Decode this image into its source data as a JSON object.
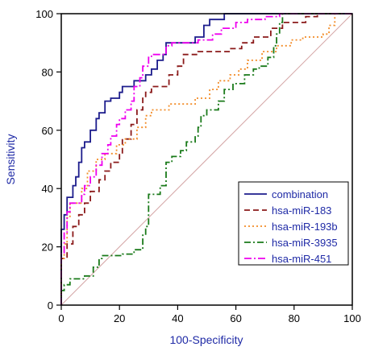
{
  "chart_data": {
    "type": "line",
    "title": "",
    "xlabel": "100-Specificity",
    "ylabel": "Sensitivity",
    "xlim": [
      0,
      100
    ],
    "ylim": [
      0,
      100
    ],
    "xticks": [
      0,
      20,
      40,
      60,
      80,
      100
    ],
    "yticks": [
      0,
      20,
      40,
      60,
      80,
      100
    ],
    "grid": false,
    "legend_position": "bottom-right",
    "reference_line": {
      "x": [
        0,
        100
      ],
      "y": [
        0,
        100
      ],
      "color": "#d4a5a5"
    },
    "series": [
      {
        "name": "combination",
        "color": "#1c1c8c",
        "dash": "",
        "points": [
          [
            0,
            0
          ],
          [
            0,
            26
          ],
          [
            1,
            26
          ],
          [
            1,
            31
          ],
          [
            2,
            31
          ],
          [
            2,
            37
          ],
          [
            4,
            37
          ],
          [
            4,
            41
          ],
          [
            5,
            41
          ],
          [
            5,
            44
          ],
          [
            6,
            44
          ],
          [
            6,
            49
          ],
          [
            7,
            49
          ],
          [
            7,
            54
          ],
          [
            8,
            54
          ],
          [
            8,
            56
          ],
          [
            10,
            56
          ],
          [
            10,
            60
          ],
          [
            12,
            60
          ],
          [
            12,
            64
          ],
          [
            13,
            64
          ],
          [
            13,
            66
          ],
          [
            15,
            66
          ],
          [
            15,
            70
          ],
          [
            17,
            70
          ],
          [
            17,
            71
          ],
          [
            20,
            71
          ],
          [
            20,
            73
          ],
          [
            21,
            73
          ],
          [
            21,
            75
          ],
          [
            25,
            75
          ],
          [
            25,
            77
          ],
          [
            29,
            77
          ],
          [
            29,
            79
          ],
          [
            31,
            79
          ],
          [
            31,
            81
          ],
          [
            33,
            81
          ],
          [
            33,
            84
          ],
          [
            35,
            84
          ],
          [
            35,
            86
          ],
          [
            36,
            86
          ],
          [
            36,
            90
          ],
          [
            46,
            90
          ],
          [
            46,
            92
          ],
          [
            49,
            92
          ],
          [
            49,
            96
          ],
          [
            51,
            96
          ],
          [
            51,
            98
          ],
          [
            56,
            98
          ],
          [
            56,
            100
          ],
          [
            100,
            100
          ]
        ]
      },
      {
        "name": "hsa-miR-183",
        "color": "#8b1a1a",
        "dash": "7,4",
        "points": [
          [
            0,
            0
          ],
          [
            0,
            16
          ],
          [
            2,
            16
          ],
          [
            2,
            21
          ],
          [
            4,
            21
          ],
          [
            4,
            27
          ],
          [
            6,
            27
          ],
          [
            6,
            31
          ],
          [
            8,
            31
          ],
          [
            8,
            35
          ],
          [
            10,
            35
          ],
          [
            10,
            39
          ],
          [
            13,
            39
          ],
          [
            13,
            43
          ],
          [
            15,
            43
          ],
          [
            15,
            46
          ],
          [
            17,
            46
          ],
          [
            17,
            49
          ],
          [
            20,
            49
          ],
          [
            20,
            52
          ],
          [
            21,
            52
          ],
          [
            21,
            57
          ],
          [
            24,
            57
          ],
          [
            24,
            62
          ],
          [
            26,
            62
          ],
          [
            26,
            67
          ],
          [
            28,
            67
          ],
          [
            28,
            71
          ],
          [
            29,
            71
          ],
          [
            29,
            73
          ],
          [
            31,
            73
          ],
          [
            31,
            75
          ],
          [
            37,
            75
          ],
          [
            37,
            79
          ],
          [
            40,
            79
          ],
          [
            40,
            82
          ],
          [
            42,
            82
          ],
          [
            42,
            86
          ],
          [
            47,
            86
          ],
          [
            47,
            87
          ],
          [
            58,
            87
          ],
          [
            58,
            88
          ],
          [
            62,
            88
          ],
          [
            62,
            90
          ],
          [
            66,
            90
          ],
          [
            66,
            92
          ],
          [
            72,
            92
          ],
          [
            72,
            95
          ],
          [
            76,
            95
          ],
          [
            76,
            97
          ],
          [
            84,
            97
          ],
          [
            84,
            99
          ],
          [
            88,
            99
          ],
          [
            88,
            100
          ],
          [
            100,
            100
          ]
        ]
      },
      {
        "name": "hsa-miR-193b",
        "color": "#f28c28",
        "dash": "2,3",
        "points": [
          [
            0,
            0
          ],
          [
            0,
            16
          ],
          [
            1,
            16
          ],
          [
            1,
            21
          ],
          [
            2,
            21
          ],
          [
            2,
            30
          ],
          [
            3,
            30
          ],
          [
            3,
            35
          ],
          [
            7,
            35
          ],
          [
            7,
            40
          ],
          [
            9,
            40
          ],
          [
            9,
            46
          ],
          [
            12,
            46
          ],
          [
            12,
            50
          ],
          [
            15,
            50
          ],
          [
            15,
            52
          ],
          [
            19,
            52
          ],
          [
            19,
            55
          ],
          [
            22,
            55
          ],
          [
            22,
            57
          ],
          [
            26,
            57
          ],
          [
            26,
            61
          ],
          [
            29,
            61
          ],
          [
            29,
            65
          ],
          [
            31,
            65
          ],
          [
            31,
            67
          ],
          [
            37,
            67
          ],
          [
            37,
            69
          ],
          [
            46,
            69
          ],
          [
            46,
            71
          ],
          [
            51,
            71
          ],
          [
            51,
            74
          ],
          [
            54,
            74
          ],
          [
            54,
            77
          ],
          [
            58,
            77
          ],
          [
            58,
            79
          ],
          [
            61,
            79
          ],
          [
            61,
            81
          ],
          [
            64,
            81
          ],
          [
            64,
            84
          ],
          [
            69,
            84
          ],
          [
            69,
            87
          ],
          [
            74,
            87
          ],
          [
            74,
            89
          ],
          [
            79,
            89
          ],
          [
            79,
            91
          ],
          [
            83,
            91
          ],
          [
            83,
            92
          ],
          [
            90,
            92
          ],
          [
            90,
            93
          ],
          [
            92,
            93
          ],
          [
            92,
            96
          ],
          [
            94,
            96
          ],
          [
            94,
            100
          ],
          [
            100,
            100
          ]
        ]
      },
      {
        "name": "hsa-miR-3935",
        "color": "#1a7a1a",
        "dash": "8,3,2,3",
        "points": [
          [
            0,
            0
          ],
          [
            0,
            5
          ],
          [
            1,
            5
          ],
          [
            1,
            7
          ],
          [
            3,
            7
          ],
          [
            3,
            9
          ],
          [
            8,
            9
          ],
          [
            8,
            10
          ],
          [
            11,
            10
          ],
          [
            11,
            13
          ],
          [
            13,
            13
          ],
          [
            13,
            16
          ],
          [
            14,
            16
          ],
          [
            14,
            17
          ],
          [
            21,
            17
          ],
          [
            21,
            17.5
          ],
          [
            25,
            17.5
          ],
          [
            25,
            19
          ],
          [
            28,
            19
          ],
          [
            28,
            24
          ],
          [
            29,
            24
          ],
          [
            29,
            27
          ],
          [
            30,
            27
          ],
          [
            30,
            38
          ],
          [
            34,
            38
          ],
          [
            34,
            41
          ],
          [
            36,
            41
          ],
          [
            36,
            49
          ],
          [
            38,
            49
          ],
          [
            38,
            51
          ],
          [
            41,
            51
          ],
          [
            41,
            53
          ],
          [
            43,
            53
          ],
          [
            43,
            56
          ],
          [
            46,
            56
          ],
          [
            46,
            58
          ],
          [
            47,
            58
          ],
          [
            47,
            61
          ],
          [
            48,
            61
          ],
          [
            48,
            65
          ],
          [
            50,
            65
          ],
          [
            50,
            67
          ],
          [
            54,
            67
          ],
          [
            54,
            70
          ],
          [
            56,
            70
          ],
          [
            56,
            74
          ],
          [
            59,
            74
          ],
          [
            59,
            76
          ],
          [
            63,
            76
          ],
          [
            63,
            79
          ],
          [
            66,
            79
          ],
          [
            66,
            81
          ],
          [
            68,
            81
          ],
          [
            68,
            82
          ],
          [
            71,
            82
          ],
          [
            71,
            85
          ],
          [
            73,
            85
          ],
          [
            73,
            89
          ],
          [
            74,
            89
          ],
          [
            74,
            93
          ],
          [
            75,
            93
          ],
          [
            75,
            97
          ],
          [
            76,
            97
          ],
          [
            76,
            100
          ],
          [
            100,
            100
          ]
        ]
      },
      {
        "name": "hsa-miR-451",
        "color": "#ee00ee",
        "dash": "9,3,2,3",
        "points": [
          [
            0,
            0
          ],
          [
            0,
            18
          ],
          [
            1,
            18
          ],
          [
            1,
            25
          ],
          [
            2,
            25
          ],
          [
            2,
            32
          ],
          [
            3,
            32
          ],
          [
            3,
            35
          ],
          [
            7,
            35
          ],
          [
            7,
            38
          ],
          [
            8,
            38
          ],
          [
            8,
            41
          ],
          [
            10,
            41
          ],
          [
            10,
            44
          ],
          [
            12,
            44
          ],
          [
            12,
            48
          ],
          [
            14,
            48
          ],
          [
            14,
            52
          ],
          [
            16,
            52
          ],
          [
            16,
            55
          ],
          [
            17,
            55
          ],
          [
            17,
            58
          ],
          [
            19,
            58
          ],
          [
            19,
            62
          ],
          [
            20,
            62
          ],
          [
            20,
            64
          ],
          [
            22,
            64
          ],
          [
            22,
            67
          ],
          [
            24,
            67
          ],
          [
            24,
            70
          ],
          [
            25,
            70
          ],
          [
            25,
            75
          ],
          [
            27,
            75
          ],
          [
            27,
            78
          ],
          [
            28,
            78
          ],
          [
            28,
            82
          ],
          [
            30,
            82
          ],
          [
            30,
            85
          ],
          [
            31,
            85
          ],
          [
            31,
            86
          ],
          [
            36,
            86
          ],
          [
            36,
            89
          ],
          [
            38,
            89
          ],
          [
            38,
            90
          ],
          [
            47,
            90
          ],
          [
            47,
            91
          ],
          [
            52,
            91
          ],
          [
            52,
            93
          ],
          [
            55,
            93
          ],
          [
            55,
            95
          ],
          [
            60,
            95
          ],
          [
            60,
            97
          ],
          [
            64,
            97
          ],
          [
            64,
            98
          ],
          [
            70,
            98
          ],
          [
            70,
            99
          ],
          [
            75,
            99
          ],
          [
            75,
            100
          ],
          [
            100,
            100
          ]
        ]
      }
    ]
  }
}
